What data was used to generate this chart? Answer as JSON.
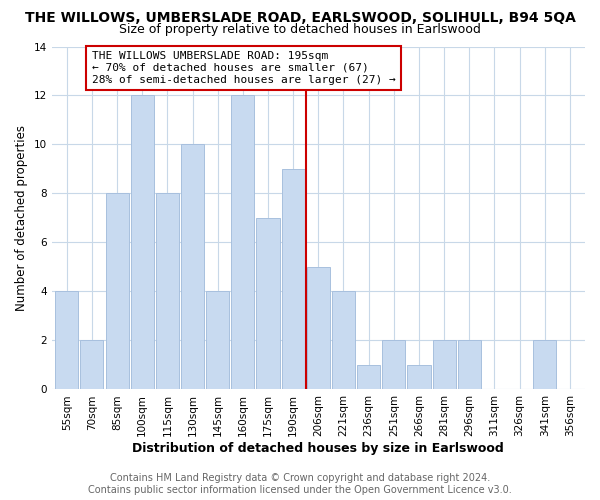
{
  "title": "THE WILLOWS, UMBERSLADE ROAD, EARLSWOOD, SOLIHULL, B94 5QA",
  "subtitle": "Size of property relative to detached houses in Earlswood",
  "xlabel": "Distribution of detached houses by size in Earlswood",
  "ylabel": "Number of detached properties",
  "bar_labels": [
    "55sqm",
    "70sqm",
    "85sqm",
    "100sqm",
    "115sqm",
    "130sqm",
    "145sqm",
    "160sqm",
    "175sqm",
    "190sqm",
    "206sqm",
    "221sqm",
    "236sqm",
    "251sqm",
    "266sqm",
    "281sqm",
    "296sqm",
    "311sqm",
    "326sqm",
    "341sqm",
    "356sqm"
  ],
  "bar_values": [
    4,
    2,
    8,
    12,
    8,
    10,
    4,
    12,
    7,
    9,
    5,
    4,
    1,
    2,
    1,
    2,
    2,
    0,
    0,
    2,
    0
  ],
  "bar_color": "#c8daf0",
  "bar_edge_color": "#a8c0de",
  "ref_line_x": 9.5,
  "ref_line_color": "#cc0000",
  "annotation_text": "THE WILLOWS UMBERSLADE ROAD: 195sqm\n← 70% of detached houses are smaller (67)\n28% of semi-detached houses are larger (27) →",
  "annotation_box_color": "#ffffff",
  "annotation_box_edge": "#cc0000",
  "ylim": [
    0,
    14
  ],
  "yticks": [
    0,
    2,
    4,
    6,
    8,
    10,
    12,
    14
  ],
  "footer_line1": "Contains HM Land Registry data © Crown copyright and database right 2024.",
  "footer_line2": "Contains public sector information licensed under the Open Government Licence v3.0.",
  "bg_color": "#ffffff",
  "grid_color": "#c8d8e8",
  "title_fontsize": 10,
  "subtitle_fontsize": 9,
  "xlabel_fontsize": 9,
  "ylabel_fontsize": 8.5,
  "tick_fontsize": 7.5,
  "annotation_fontsize": 8,
  "footer_fontsize": 7
}
